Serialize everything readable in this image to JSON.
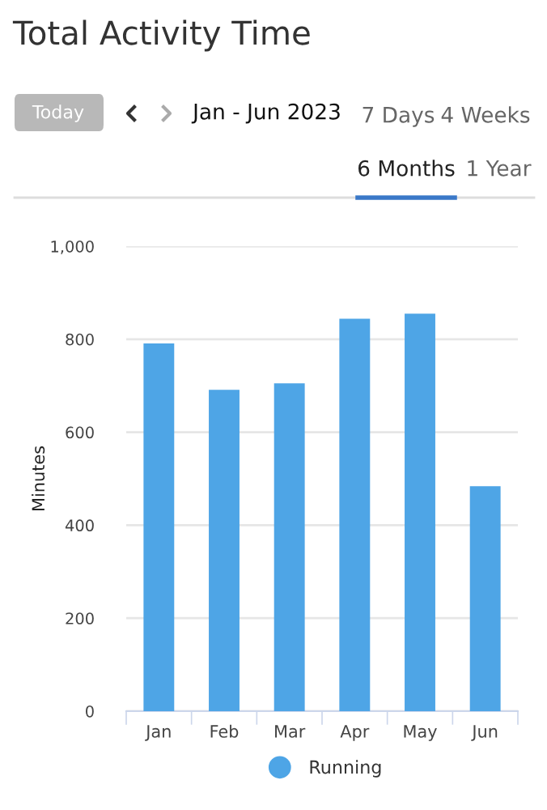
{
  "chart_data": {
    "type": "bar",
    "title": "Total Activity Time",
    "subtitle": "Jan - Jun 2023",
    "annotations": [
      "Today",
      "7 Days",
      "4 Weeks",
      "6 Months",
      "1 Year"
    ],
    "ylabel": "Minutes",
    "categories": [
      "Jan",
      "Feb",
      "Mar",
      "Apr",
      "May",
      "Jun"
    ],
    "series": [
      {
        "name": "Running",
        "color": "#4ea5e6",
        "values": [
          791,
          691,
          705,
          844,
          855,
          484
        ]
      }
    ],
    "ylim": [
      0,
      1000
    ],
    "yticks": [
      0,
      200,
      400,
      600,
      800,
      {
        "value": 1000,
        "label": "1,000"
      }
    ],
    "grid": "y",
    "legend": "bottom",
    "marker": "circle"
  }
}
